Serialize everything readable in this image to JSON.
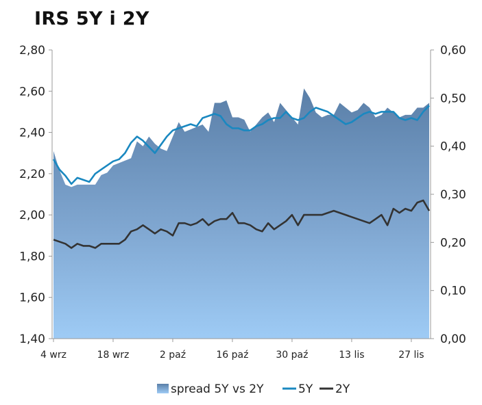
{
  "chart_data": {
    "type": "line",
    "title": "IRS 5Y i 2Y",
    "x_tick_labels": [
      "4 wrz",
      "18 wrz",
      "2 paź",
      "16 paź",
      "30 paź",
      "13 lis",
      "27 lis"
    ],
    "x_tick_index": [
      0,
      10,
      20,
      30,
      40,
      50,
      60
    ],
    "n_points": 64,
    "left_axis": {
      "ylim": [
        1.4,
        2.8
      ],
      "ticks": [
        "1,40",
        "1,60",
        "1,80",
        "2,00",
        "2,20",
        "2,40",
        "2,60",
        "2,80"
      ],
      "tick_values": [
        1.4,
        1.6,
        1.8,
        2.0,
        2.2,
        2.4,
        2.6,
        2.8
      ]
    },
    "right_axis": {
      "ylim": [
        0.0,
        0.6
      ],
      "ticks": [
        "0,00",
        "0,10",
        "0,20",
        "0,30",
        "0,40",
        "0,50",
        "0,60"
      ],
      "tick_values": [
        0.0,
        0.1,
        0.2,
        0.3,
        0.4,
        0.5,
        0.6
      ]
    },
    "series": [
      {
        "name": "spread 5Y vs 2Y",
        "kind": "area",
        "axis": "right",
        "color": "#5e86b0",
        "values": [
          0.39,
          0.35,
          0.32,
          0.315,
          0.32,
          0.32,
          0.32,
          0.32,
          0.34,
          0.345,
          0.36,
          0.365,
          0.37,
          0.375,
          0.41,
          0.4,
          0.42,
          0.405,
          0.395,
          0.39,
          0.42,
          0.45,
          0.43,
          0.435,
          0.44,
          0.445,
          0.43,
          0.49,
          0.49,
          0.495,
          0.46,
          0.46,
          0.455,
          0.43,
          0.445,
          0.46,
          0.47,
          0.45,
          0.49,
          0.475,
          0.46,
          0.445,
          0.52,
          0.5,
          0.47,
          0.46,
          0.465,
          0.465,
          0.49,
          0.48,
          0.47,
          0.475,
          0.49,
          0.48,
          0.46,
          0.465,
          0.48,
          0.47,
          0.46,
          0.465,
          0.465,
          0.48,
          0.48,
          0.49
        ]
      },
      {
        "name": "5Y",
        "kind": "line",
        "axis": "left",
        "color": "#1a88c0",
        "values": [
          2.27,
          2.22,
          2.19,
          2.15,
          2.18,
          2.17,
          2.16,
          2.2,
          2.22,
          2.24,
          2.26,
          2.27,
          2.3,
          2.35,
          2.38,
          2.36,
          2.33,
          2.3,
          2.34,
          2.38,
          2.41,
          2.42,
          2.43,
          2.44,
          2.43,
          2.47,
          2.48,
          2.49,
          2.48,
          2.44,
          2.42,
          2.42,
          2.41,
          2.41,
          2.43,
          2.44,
          2.46,
          2.47,
          2.47,
          2.5,
          2.47,
          2.46,
          2.47,
          2.5,
          2.52,
          2.51,
          2.5,
          2.48,
          2.46,
          2.44,
          2.45,
          2.47,
          2.49,
          2.5,
          2.49,
          2.5,
          2.5,
          2.5,
          2.47,
          2.46,
          2.47,
          2.46,
          2.5,
          2.53
        ]
      },
      {
        "name": "2Y",
        "kind": "line",
        "axis": "left",
        "color": "#333333",
        "values": [
          1.88,
          1.87,
          1.86,
          1.84,
          1.86,
          1.85,
          1.85,
          1.84,
          1.86,
          1.86,
          1.86,
          1.86,
          1.88,
          1.92,
          1.93,
          1.95,
          1.93,
          1.91,
          1.93,
          1.92,
          1.9,
          1.96,
          1.96,
          1.95,
          1.96,
          1.98,
          1.95,
          1.97,
          1.98,
          1.98,
          2.01,
          1.96,
          1.96,
          1.95,
          1.93,
          1.92,
          1.96,
          1.93,
          1.95,
          1.97,
          2.0,
          1.95,
          2.0,
          2.0,
          2.0,
          2.0,
          2.01,
          2.02,
          2.01,
          2.0,
          1.99,
          1.98,
          1.97,
          1.96,
          1.98,
          2.0,
          1.95,
          2.03,
          2.01,
          2.03,
          2.02,
          2.06,
          2.07,
          2.02
        ]
      }
    ],
    "legend": {
      "placement": "bottom",
      "entries": [
        "spread 5Y vs 2Y",
        "5Y",
        "2Y"
      ]
    },
    "grid": false
  }
}
